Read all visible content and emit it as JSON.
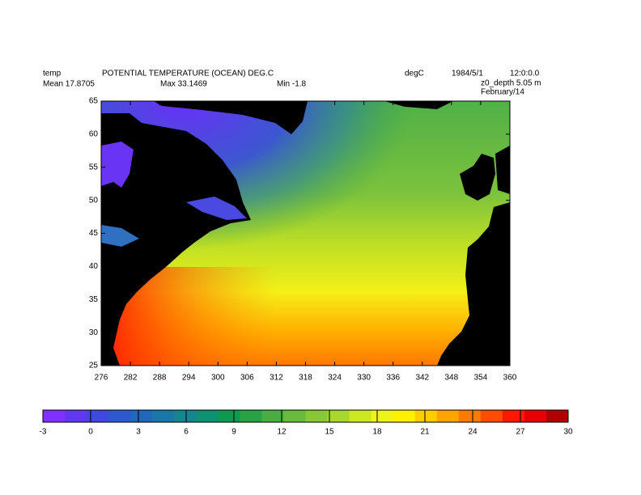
{
  "header": {
    "variable": "temp",
    "long_name": "POTENTIAL TEMPERATURE (OCEAN)  DEG.C",
    "units": "degC",
    "date": "1984/5/1",
    "time": "12:0:0.0",
    "mean": "Mean 17.8705",
    "max": "Max 33.1469",
    "min": "Min -1.8",
    "depth": "z0_depth 5.05 m",
    "period": "February/14"
  },
  "map": {
    "xlim": [
      276,
      360
    ],
    "ylim": [
      25,
      65
    ],
    "xticks": [
      276,
      282,
      288,
      294,
      300,
      306,
      312,
      318,
      324,
      330,
      336,
      342,
      348,
      354,
      360
    ],
    "yticks": [
      25,
      30,
      35,
      40,
      45,
      50,
      55,
      60,
      65
    ]
  },
  "colorbar": {
    "lim": [
      -3,
      30
    ],
    "ticks": [
      -3,
      0,
      3,
      6,
      9,
      12,
      15,
      18,
      21,
      24,
      27,
      30
    ],
    "colors": [
      "#8030ff",
      "#6038f0",
      "#4048e0",
      "#2c58d0",
      "#2068bc",
      "#1a78a8",
      "#148690",
      "#0c9270",
      "#0c9a50",
      "#28a244",
      "#48ae40",
      "#68bc3c",
      "#88c834",
      "#a8d82c",
      "#cce820",
      "#eef418",
      "#fff000",
      "#ffcc00",
      "#ffa400",
      "#ff7a00",
      "#ff4c00",
      "#ff1800",
      "#e80000",
      "#b00000"
    ]
  }
}
